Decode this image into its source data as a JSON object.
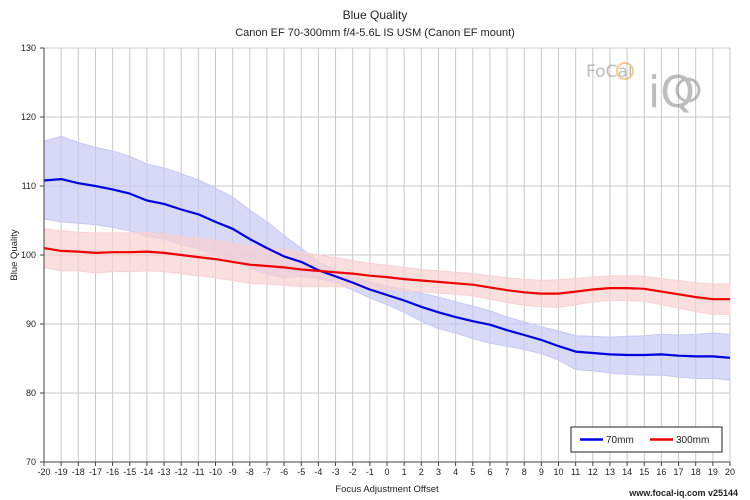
{
  "chart_data": {
    "type": "line",
    "title": "Blue Quality",
    "subtitle": "Canon EF 70-300mm f/4-5.6L IS USM (Canon EF mount)",
    "xlabel": "Focus Adjustment Offset",
    "ylabel": "Blue Quality",
    "xlim": [
      -20,
      20
    ],
    "ylim": [
      70,
      130
    ],
    "x_ticks": [
      "-20",
      "-19",
      "-18",
      "-17",
      "-16",
      "-15",
      "-14",
      "-13",
      "-12",
      "-11",
      "-10",
      "-9",
      "-8",
      "-7",
      "-6",
      "-5",
      "-4",
      "-3",
      "-2",
      "-1",
      "0",
      "1",
      "2",
      "3",
      "4",
      "5",
      "6",
      "7",
      "8",
      "9",
      "10",
      "11",
      "12",
      "13",
      "14",
      "15",
      "16",
      "17",
      "18",
      "19",
      "20"
    ],
    "y_ticks": [
      "70",
      "80",
      "90",
      "100",
      "110",
      "120",
      "130"
    ],
    "grid": true,
    "legend_position": "bottom-right",
    "x": [
      -20,
      -19,
      -18,
      -17,
      -16,
      -15,
      -14,
      -13,
      -12,
      -11,
      -10,
      -9,
      -8,
      -7,
      -6,
      -5,
      -4,
      -3,
      -2,
      -1,
      0,
      1,
      2,
      3,
      4,
      5,
      6,
      7,
      8,
      9,
      10,
      11,
      12,
      13,
      14,
      15,
      16,
      17,
      18,
      19,
      20
    ],
    "series": [
      {
        "name": "70mm",
        "color": "#0000dd",
        "band_color": "#c8c8f4",
        "values": [
          110.8,
          111.0,
          110.4,
          110.0,
          109.5,
          108.9,
          107.9,
          107.4,
          106.6,
          105.9,
          104.8,
          103.8,
          102.3,
          101.0,
          99.8,
          99.0,
          97.8,
          96.9,
          96.0,
          95.0,
          94.2,
          93.4,
          92.5,
          91.7,
          91.0,
          90.4,
          89.9,
          89.1,
          88.4,
          87.7,
          86.8,
          86.0,
          85.8,
          85.6,
          85.5,
          85.5,
          85.6,
          85.4,
          85.3,
          85.3,
          85.1
        ],
        "upper": [
          116.5,
          117.2,
          116.3,
          115.6,
          115.1,
          114.3,
          113.2,
          112.6,
          111.8,
          110.9,
          109.7,
          108.4,
          106.5,
          104.8,
          102.8,
          101.0,
          99.0,
          97.8,
          97.0,
          96.1,
          95.5,
          95.0,
          94.5,
          93.9,
          93.2,
          92.6,
          91.9,
          91.0,
          90.3,
          89.6,
          89.0,
          88.3,
          88.2,
          88.1,
          88.2,
          88.3,
          88.5,
          88.4,
          88.5,
          88.7,
          88.5
        ],
        "lower": [
          105.2,
          104.8,
          104.6,
          104.4,
          104.0,
          103.5,
          102.7,
          102.3,
          101.5,
          100.9,
          99.9,
          99.2,
          98.1,
          97.2,
          96.7,
          96.9,
          96.6,
          96.0,
          94.9,
          93.8,
          92.8,
          91.7,
          90.4,
          89.3,
          88.7,
          87.9,
          87.2,
          86.8,
          86.3,
          85.7,
          84.8,
          83.4,
          83.2,
          82.9,
          82.7,
          82.6,
          82.6,
          82.3,
          82.1,
          82.1,
          81.9
        ]
      },
      {
        "name": "300mm",
        "color": "#ee0000",
        "band_color": "#f8d2d2",
        "values": [
          101.0,
          100.6,
          100.5,
          100.3,
          100.4,
          100.4,
          100.5,
          100.3,
          100.0,
          99.7,
          99.4,
          99.0,
          98.6,
          98.4,
          98.2,
          97.9,
          97.7,
          97.5,
          97.3,
          97.0,
          96.8,
          96.5,
          96.3,
          96.1,
          95.9,
          95.7,
          95.3,
          94.9,
          94.6,
          94.4,
          94.4,
          94.7,
          95.0,
          95.2,
          95.2,
          95.1,
          94.7,
          94.3,
          93.9,
          93.6,
          93.6
        ],
        "upper": [
          103.8,
          103.5,
          103.3,
          103.2,
          103.2,
          103.2,
          103.3,
          103.0,
          102.7,
          102.4,
          102.1,
          101.7,
          101.3,
          101.0,
          100.8,
          100.4,
          100.0,
          99.6,
          99.2,
          98.8,
          98.5,
          98.2,
          97.9,
          97.7,
          97.5,
          97.3,
          97.0,
          96.7,
          96.5,
          96.3,
          96.4,
          96.6,
          96.8,
          97.0,
          97.0,
          96.9,
          96.6,
          96.3,
          96.0,
          95.8,
          95.8
        ],
        "lower": [
          98.2,
          97.7,
          97.7,
          97.4,
          97.6,
          97.6,
          97.7,
          97.6,
          97.3,
          97.0,
          96.7,
          96.3,
          95.9,
          95.8,
          95.6,
          95.4,
          95.4,
          95.4,
          95.4,
          95.2,
          95.1,
          94.8,
          94.7,
          94.5,
          94.3,
          94.1,
          93.6,
          93.1,
          92.7,
          92.5,
          92.4,
          92.8,
          93.2,
          93.4,
          93.4,
          93.3,
          92.8,
          92.3,
          91.8,
          91.4,
          91.4
        ]
      }
    ]
  },
  "logo": {
    "brand": "FoCal",
    "mark": "iQ"
  },
  "footer": {
    "text": "www.focal-iq.com  v25144"
  }
}
